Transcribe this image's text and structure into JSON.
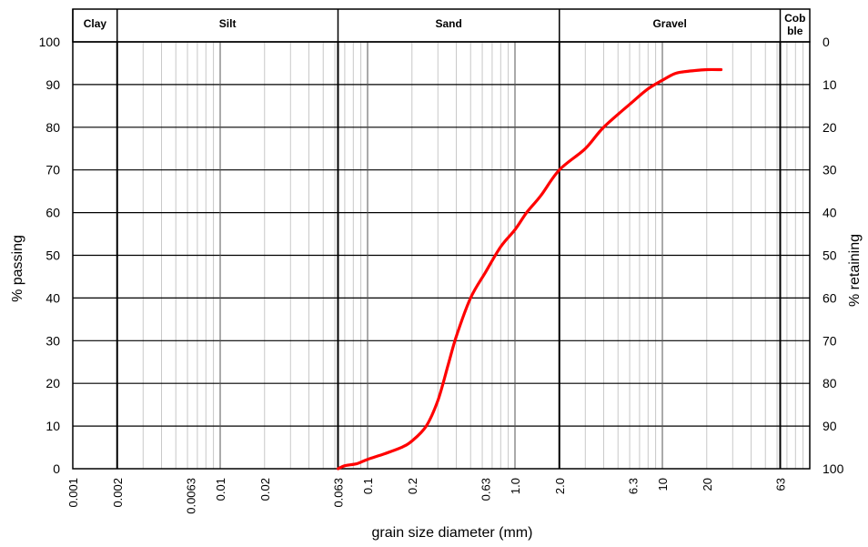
{
  "chart_data": {
    "type": "line",
    "x_scale": "log",
    "xlim": [
      0.001,
      100
    ],
    "ylim": [
      0,
      100
    ],
    "xlabel": "grain size diameter (mm)",
    "ylabel_left": "% passing",
    "ylabel_right": "% retaining",
    "y_ticks": [
      "0",
      "10",
      "20",
      "30",
      "40",
      "50",
      "60",
      "70",
      "80",
      "90",
      "100"
    ],
    "y_ticks_right": [
      "100",
      "90",
      "80",
      "70",
      "60",
      "50",
      "40",
      "30",
      "20",
      "10",
      "0"
    ],
    "x_ticks": [
      {
        "value": 0.001,
        "label": "0.001"
      },
      {
        "value": 0.002,
        "label": "0.002"
      },
      {
        "value": 0.0063,
        "label": "0.0063"
      },
      {
        "value": 0.01,
        "label": "0.01"
      },
      {
        "value": 0.02,
        "label": "0.02"
      },
      {
        "value": 0.063,
        "label": "0.063"
      },
      {
        "value": 0.1,
        "label": "0.1"
      },
      {
        "value": 0.2,
        "label": "0.2"
      },
      {
        "value": 0.63,
        "label": "0.63"
      },
      {
        "value": 1.0,
        "label": "1.0"
      },
      {
        "value": 2.0,
        "label": "2.0"
      },
      {
        "value": 6.3,
        "label": "6.3"
      },
      {
        "value": 10,
        "label": "10"
      },
      {
        "value": 20,
        "label": "20"
      },
      {
        "value": 63,
        "label": "63"
      }
    ],
    "soil_classes": [
      {
        "name": "Clay",
        "from": 0.001,
        "to": 0.002
      },
      {
        "name": "Silt",
        "from": 0.002,
        "to": 0.063
      },
      {
        "name": "Sand",
        "from": 0.063,
        "to": 2.0
      },
      {
        "name": "Gravel",
        "from": 2.0,
        "to": 63
      },
      {
        "name": "Cob ble",
        "from": 63,
        "to": 100
      }
    ],
    "series": [
      {
        "color": "#ff0000",
        "x": [
          0.063,
          0.07,
          0.085,
          0.1,
          0.13,
          0.17,
          0.2,
          0.25,
          0.3,
          0.35,
          0.4,
          0.5,
          0.63,
          0.8,
          1.0,
          1.2,
          1.5,
          2.0,
          3.0,
          4.0,
          6.3,
          8.0,
          10.0,
          12.0,
          14.0,
          17.0,
          20.0,
          25.0
        ],
        "y": [
          0,
          0.7,
          1.2,
          2.2,
          3.5,
          5.0,
          6.5,
          10.0,
          16.0,
          24.0,
          31.0,
          40.0,
          46.0,
          52.0,
          56.0,
          60.0,
          64.0,
          70.0,
          75.0,
          80.0,
          86.0,
          89.0,
          91.0,
          92.5,
          93.0,
          93.3,
          93.5,
          93.5
        ]
      }
    ]
  }
}
